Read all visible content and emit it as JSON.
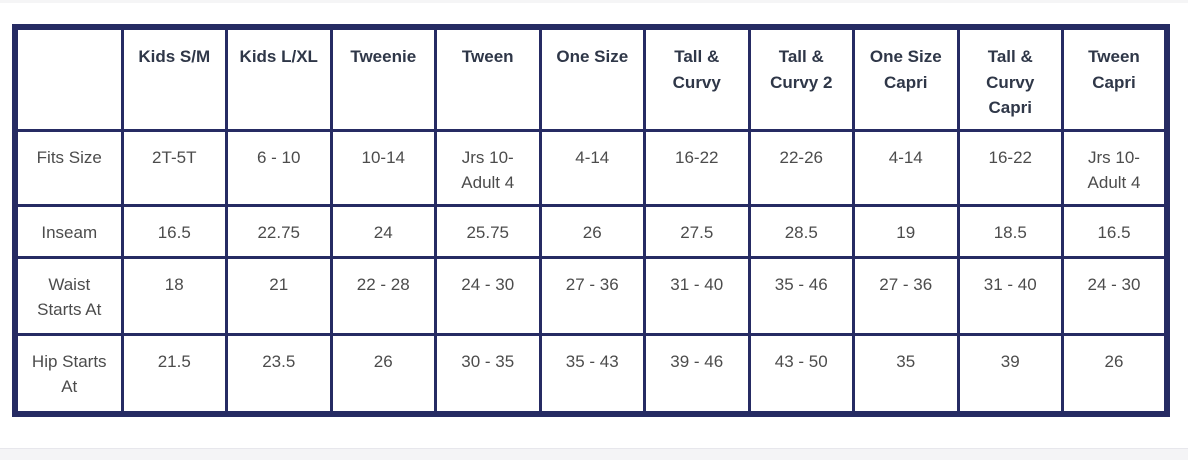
{
  "page": {
    "background": "#ffffff",
    "top_strip_color": "#f5f5f6",
    "bottom_strip_color": "#f4f4f6"
  },
  "size_chart": {
    "colors": {
      "border": "#262b63",
      "header_text": "#2f3748",
      "body_text": "#4c4c4c",
      "cell_background": "#ffffff"
    },
    "corner_label": "",
    "columns": [
      "Kids S/M",
      "Kids L/XL",
      "Tweenie",
      "Tween",
      "One Size",
      "Tall & Curvy",
      "Tall & Curvy 2",
      "One Size Capri",
      "Tall & Curvy Capri",
      "Tween Capri"
    ],
    "rows": [
      {
        "label": "Fits Size",
        "values": [
          "2T-5T",
          "6 - 10",
          "10-14",
          "Jrs 10-Adult 4",
          "4-14",
          "16-22",
          "22-26",
          "4-14",
          "16-22",
          "Jrs 10-Adult 4"
        ]
      },
      {
        "label": "Inseam",
        "values": [
          "16.5",
          "22.75",
          "24",
          "25.75",
          "26",
          "27.5",
          "28.5",
          "19",
          "18.5",
          "16.5"
        ]
      },
      {
        "label": "Waist Starts At",
        "values": [
          "18",
          "21",
          "22 - 28",
          "24 - 30",
          "27 - 36",
          "31 - 40",
          "35 - 46",
          "27 - 36",
          "31 - 40",
          "24 - 30"
        ]
      },
      {
        "label": "Hip Starts At",
        "values": [
          "21.5",
          "23.5",
          "26",
          "30 - 35",
          "35 - 43",
          "39 - 46",
          "43 - 50",
          "35",
          "39",
          "26"
        ]
      }
    ]
  }
}
